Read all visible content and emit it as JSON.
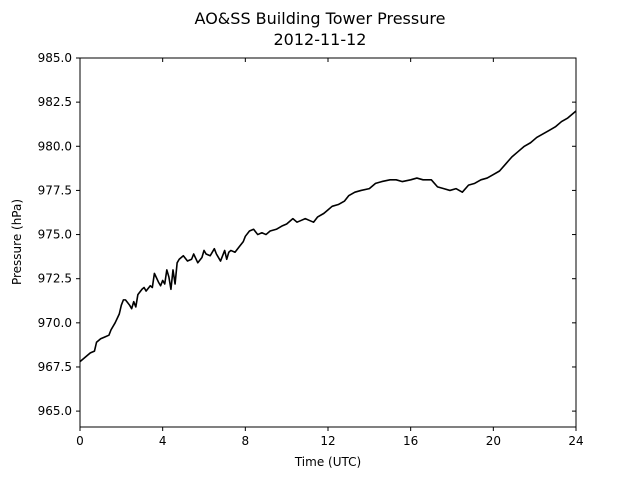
{
  "chart_data": {
    "type": "line",
    "title": "AO&SS Building Tower Pressure",
    "subtitle": "2012-11-12",
    "xlabel": "Time (UTC)",
    "ylabel": "Pressure (hPa)",
    "xlim": [
      0,
      24
    ],
    "ylim": [
      964.1,
      985.0
    ],
    "xticks": [
      0,
      4,
      8,
      12,
      16,
      20,
      24
    ],
    "xtick_labels": [
      "0",
      "4",
      "8",
      "12",
      "16",
      "20",
      "24"
    ],
    "yticks": [
      965.0,
      967.5,
      970.0,
      972.5,
      975.0,
      977.5,
      980.0,
      982.5,
      985.0
    ],
    "ytick_labels": [
      "965.0",
      "967.5",
      "970.0",
      "972.5",
      "975.0",
      "977.5",
      "980.0",
      "982.5",
      "985.0"
    ],
    "grid": false,
    "line_color": "#000000",
    "series": [
      {
        "x": [
          0.0,
          0.3,
          0.5,
          0.7,
          0.8,
          1.0,
          1.2,
          1.4,
          1.5,
          1.7,
          1.9,
          2.0,
          2.1,
          2.2,
          2.4,
          2.5,
          2.6,
          2.7,
          2.8,
          3.0,
          3.1,
          3.2,
          3.4,
          3.5,
          3.6,
          3.8,
          3.9,
          4.0,
          4.1,
          4.2,
          4.3,
          4.4,
          4.5,
          4.6,
          4.7,
          4.8,
          5.0,
          5.2,
          5.4,
          5.5,
          5.7,
          5.9,
          6.0,
          6.1,
          6.3,
          6.5,
          6.6,
          6.8,
          7.0,
          7.1,
          7.2,
          7.3,
          7.5,
          7.7,
          7.9,
          8.0,
          8.2,
          8.4,
          8.6,
          8.8,
          9.0,
          9.2,
          9.5,
          9.8,
          10.0,
          10.3,
          10.5,
          10.7,
          10.9,
          11.1,
          11.3,
          11.5,
          11.8,
          12.0,
          12.2,
          12.5,
          12.8,
          13.0,
          13.3,
          13.6,
          14.0,
          14.3,
          14.6,
          15.0,
          15.3,
          15.6,
          16.0,
          16.3,
          16.6,
          17.0,
          17.3,
          17.6,
          17.9,
          18.2,
          18.5,
          18.8,
          19.1,
          19.4,
          19.7,
          20.0,
          20.3,
          20.6,
          20.9,
          21.2,
          21.5,
          21.8,
          22.1,
          22.4,
          22.7,
          23.0,
          23.3,
          23.6,
          24.0
        ],
        "y": [
          967.8,
          968.1,
          968.3,
          968.4,
          968.9,
          969.1,
          969.2,
          969.3,
          969.6,
          970.0,
          970.5,
          971.0,
          971.3,
          971.3,
          971.0,
          970.8,
          971.2,
          970.9,
          971.6,
          971.9,
          972.0,
          971.8,
          972.1,
          972.0,
          972.8,
          972.3,
          972.1,
          972.4,
          972.2,
          973.0,
          972.6,
          971.9,
          973.0,
          972.2,
          973.4,
          973.6,
          973.8,
          973.5,
          973.6,
          973.9,
          973.4,
          973.7,
          974.1,
          973.9,
          973.8,
          974.2,
          973.9,
          973.5,
          974.1,
          973.6,
          974.0,
          974.1,
          974.0,
          974.3,
          974.6,
          974.9,
          975.2,
          975.3,
          975.0,
          975.1,
          975.0,
          975.2,
          975.3,
          975.5,
          975.6,
          975.9,
          975.7,
          975.8,
          975.9,
          975.8,
          975.7,
          976.0,
          976.2,
          976.4,
          976.6,
          976.7,
          976.9,
          977.2,
          977.4,
          977.5,
          977.6,
          977.9,
          978.0,
          978.1,
          978.1,
          978.0,
          978.1,
          978.2,
          978.1,
          978.1,
          977.7,
          977.6,
          977.5,
          977.6,
          977.4,
          977.8,
          977.9,
          978.1,
          978.2,
          978.4,
          978.6,
          979.0,
          979.4,
          979.7,
          980.0,
          980.2,
          980.5,
          980.7,
          980.9,
          981.1,
          981.4,
          981.6,
          982.0
        ]
      }
    ]
  }
}
